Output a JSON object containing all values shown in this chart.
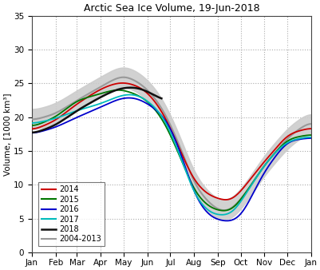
{
  "title": "Arctic Sea Ice Volume, 19-Jun-2018",
  "ylabel": "Volume, [1000 km³]",
  "ylim": [
    0,
    35
  ],
  "yticks": [
    0,
    5,
    10,
    15,
    20,
    25,
    30,
    35
  ],
  "months": [
    "Jan",
    "Feb",
    "Mar",
    "Apr",
    "May",
    "Jun",
    "Jul",
    "Aug",
    "Sep",
    "Oct",
    "Nov",
    "Dec",
    "Jan"
  ],
  "background_color": "#ffffff",
  "grid_color": "#aaaaaa",
  "legend_entries": [
    {
      "label": "2014",
      "color": "#cc0000"
    },
    {
      "label": "2015",
      "color": "#007700"
    },
    {
      "label": "2016",
      "color": "#0000cc"
    },
    {
      "label": "2017",
      "color": "#00bbbb"
    },
    {
      "label": "2018",
      "color": "#111111"
    },
    {
      "label": "2004-2013",
      "color": "#999999"
    }
  ],
  "mean_color": "#999999",
  "shade_color": "#cccccc",
  "dmi_box_color": "#1a3a8a",
  "n_points": 365
}
